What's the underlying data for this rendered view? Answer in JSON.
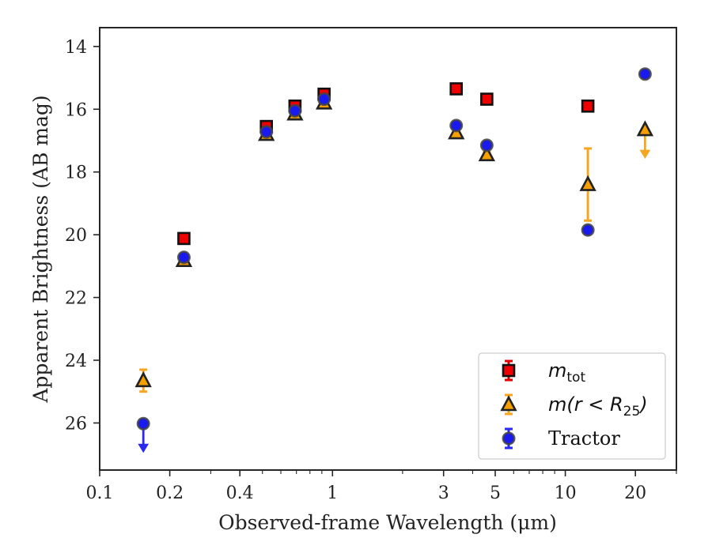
{
  "chart_data": {
    "type": "scatter",
    "xscale": "log",
    "xlim": [
      0.1,
      30
    ],
    "ylim": [
      27.5,
      13.4
    ],
    "y_inverted": true,
    "xlabel": "Observed-frame Wavelength (μm)",
    "ylabel": "Apparent Brightness (AB mag)",
    "xticks": [
      {
        "value": 0.1,
        "label": "0.1"
      },
      {
        "value": 0.2,
        "label": "0.2"
      },
      {
        "value": 0.4,
        "label": "0.4"
      },
      {
        "value": 1,
        "label": "1"
      },
      {
        "value": 3,
        "label": "3"
      },
      {
        "value": 5,
        "label": "5"
      },
      {
        "value": 10,
        "label": "10"
      },
      {
        "value": 20,
        "label": "20"
      }
    ],
    "yticks": [
      {
        "value": 14,
        "label": "14"
      },
      {
        "value": 16,
        "label": "16"
      },
      {
        "value": 18,
        "label": "18"
      },
      {
        "value": 20,
        "label": "20"
      },
      {
        "value": 22,
        "label": "22"
      },
      {
        "value": 24,
        "label": "24"
      },
      {
        "value": 26,
        "label": "26"
      }
    ],
    "legend_position": "lower-right",
    "series": [
      {
        "key": "mtot",
        "legend_main": "m",
        "legend_sub": "tot",
        "marker": "square",
        "fill": "#ee0000",
        "edge": "#111111",
        "errcolor": "#dd0000",
        "points": [
          {
            "x": 0.23,
            "y": 20.12,
            "err": 0.12
          },
          {
            "x": 0.52,
            "y": 16.55,
            "err": 0.1
          },
          {
            "x": 0.69,
            "y": 15.9,
            "err": 0.1
          },
          {
            "x": 0.92,
            "y": 15.52,
            "err": 0.1
          },
          {
            "x": 3.4,
            "y": 15.35,
            "err": 0.08
          },
          {
            "x": 4.6,
            "y": 15.68,
            "err": 0.08
          },
          {
            "x": 12.5,
            "y": 15.9,
            "err": 0.1
          }
        ]
      },
      {
        "key": "mr25",
        "legend_main": "m(r < R",
        "legend_sub": "25",
        "legend_tail": ")",
        "marker": "triangle",
        "fill": "#f5a000",
        "edge": "#222222",
        "errcolor": "#f5a623",
        "points": [
          {
            "x": 0.154,
            "y": 24.65,
            "err": 0.35
          },
          {
            "x": 0.23,
            "y": 20.82,
            "err": 0.08
          },
          {
            "x": 0.52,
            "y": 16.8,
            "err": 0.08
          },
          {
            "x": 0.69,
            "y": 16.15,
            "err": 0.08
          },
          {
            "x": 0.92,
            "y": 15.8,
            "err": 0.08
          },
          {
            "x": 3.4,
            "y": 16.75,
            "err": 0.08
          },
          {
            "x": 4.6,
            "y": 17.45,
            "err": 0.08
          },
          {
            "x": 12.5,
            "y": 18.4,
            "err": 1.15
          },
          {
            "x": 22.0,
            "y": 16.65,
            "err": 0,
            "upper_limit": true
          }
        ]
      },
      {
        "key": "tractor",
        "legend_main": "Tractor",
        "marker": "circle",
        "fill": "#1a1aee",
        "edge": "#444444",
        "errcolor": "#2a2aee",
        "points": [
          {
            "x": 0.154,
            "y": 26.02,
            "err": 0,
            "upper_limit": true
          },
          {
            "x": 0.23,
            "y": 20.72,
            "err": 0.08
          },
          {
            "x": 0.52,
            "y": 16.72,
            "err": 0.06
          },
          {
            "x": 0.69,
            "y": 16.05,
            "err": 0.06
          },
          {
            "x": 0.92,
            "y": 15.68,
            "err": 0.06
          },
          {
            "x": 3.4,
            "y": 16.52,
            "err": 0.06
          },
          {
            "x": 4.6,
            "y": 17.15,
            "err": 0.06
          },
          {
            "x": 12.5,
            "y": 19.85,
            "err": 0.08
          },
          {
            "x": 22.0,
            "y": 14.88,
            "err": 0.06
          }
        ]
      }
    ]
  }
}
